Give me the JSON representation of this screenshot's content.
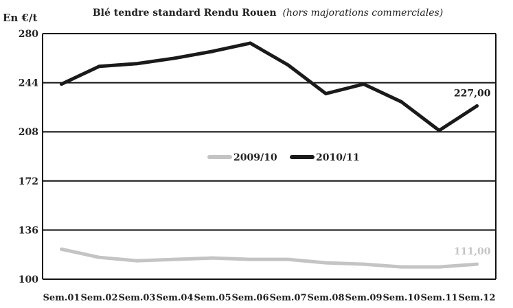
{
  "chart_data": {
    "type": "line",
    "title": "Blé tendre standard Rendu Rouen",
    "subtitle": "(hors majorations commerciales)",
    "ylabel": "En €/t",
    "xlabel": "",
    "categories": [
      "Sem.01",
      "Sem.02",
      "Sem.03",
      "Sem.04",
      "Sem.05",
      "Sem.06",
      "Sem.07",
      "Sem.08",
      "Sem.09",
      "Sem.10",
      "Sem.11",
      "Sem.12"
    ],
    "ylim": [
      100,
      280
    ],
    "yticks": [
      "100",
      "136",
      "172",
      "208",
      "244",
      "280"
    ],
    "grid": true,
    "legend_position": "center",
    "series": [
      {
        "name": "2009/10",
        "color": "#c4c4c4",
        "values": [
          122,
          116,
          113.5,
          114.5,
          115.5,
          114.5,
          114.5,
          112,
          111,
          109,
          109,
          111
        ],
        "end_label": "111,00"
      },
      {
        "name": "2010/11",
        "color": "#1a1a1a",
        "values": [
          243,
          256,
          258,
          262,
          267,
          273,
          257,
          236,
          243,
          230,
          209,
          227
        ],
        "end_label": "227,00"
      }
    ]
  }
}
